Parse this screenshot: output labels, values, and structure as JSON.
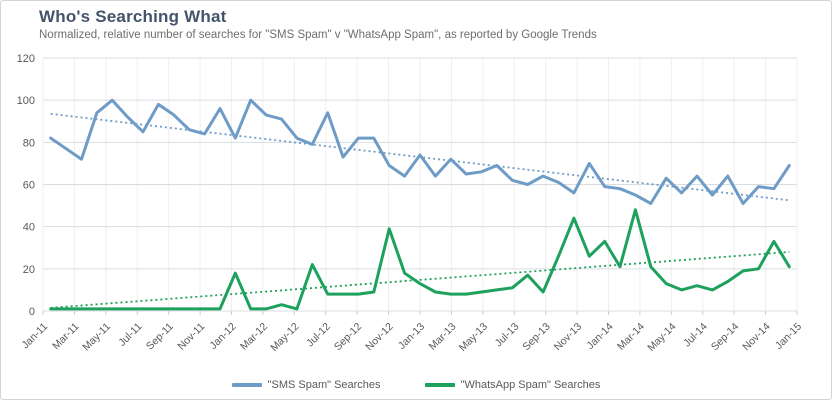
{
  "header": {
    "title": "Who's Searching What",
    "subtitle": "Normalized, relative number of searches for \"SMS Spam\" v \"WhatsApp Spam\", as reported by Google Trends"
  },
  "colors": {
    "sms_line": "#6f9bc7",
    "whatsapp_line": "#1ea15d",
    "title_text": "#44546a",
    "muted_text": "#6e6e6e",
    "axis_text": "#595959",
    "h_gridline": "#d9dde2",
    "v_gridline": "#efefef",
    "tick_mark": "#c9cdd2"
  },
  "chart_data": {
    "type": "line",
    "title": "Who's Searching What",
    "subtitle": "Normalized, relative number of searches for \"SMS Spam\" v \"WhatsApp Spam\", as reported by Google Trends",
    "x_tick_labels": [
      "Jan-11",
      "Mar-11",
      "May-11",
      "Jul-11",
      "Sep-11",
      "Nov-11",
      "Jan-12",
      "Mar-12",
      "May-12",
      "Jul-12",
      "Sep-12",
      "Nov-12",
      "Jan-13",
      "Mar-13",
      "May-13",
      "Jul-13",
      "Sep-13",
      "Nov-13",
      "Jan-14",
      "Mar-14",
      "May-14",
      "Jul-14",
      "Sep-14",
      "Nov-14",
      "Jan-15"
    ],
    "x_period": "monthly from Jan-11 to Jan-15",
    "y_ticks": [
      0,
      20,
      40,
      60,
      80,
      100,
      120
    ],
    "ylim": [
      0,
      120
    ],
    "grid": true,
    "legend_position": "bottom",
    "series": [
      {
        "name": "\"SMS Spam\" Searches",
        "color": "#6f9bc7",
        "values": [
          82,
          77,
          72,
          94,
          100,
          92,
          85,
          98,
          93,
          86,
          84,
          96,
          82,
          100,
          93,
          91,
          82,
          79,
          94,
          73,
          82,
          82,
          69,
          64,
          74,
          64,
          72,
          65,
          66,
          69,
          62,
          60,
          64,
          61,
          56,
          70,
          59,
          58,
          55,
          51,
          63,
          56,
          64,
          55,
          64,
          51,
          59,
          58,
          69
        ]
      },
      {
        "name": "\"WhatsApp Spam\" Searches",
        "color": "#1ea15d",
        "values": [
          1,
          1,
          1,
          1,
          1,
          1,
          1,
          1,
          1,
          1,
          1,
          1,
          18,
          1,
          1,
          3,
          1,
          22,
          8,
          8,
          8,
          9,
          39,
          18,
          13,
          9,
          8,
          8,
          9,
          10,
          11,
          17,
          9,
          26,
          44,
          26,
          33,
          21,
          48,
          21,
          13,
          10,
          12,
          10,
          14,
          19,
          20,
          33,
          21
        ]
      }
    ],
    "trendlines": [
      {
        "series": "\"SMS Spam\" Searches",
        "style": "dotted",
        "start_value": 93.5,
        "end_value": 52.5,
        "color": "#6f9bc7"
      },
      {
        "series": "\"WhatsApp Spam\" Searches",
        "style": "dotted",
        "start_value": 1.5,
        "end_value": 28,
        "color": "#1ea15d"
      }
    ]
  },
  "legend": {
    "items": [
      {
        "label": "\"SMS Spam\" Searches",
        "color": "#6f9bc7"
      },
      {
        "label": "\"WhatsApp Spam\" Searches",
        "color": "#1ea15d"
      }
    ]
  }
}
